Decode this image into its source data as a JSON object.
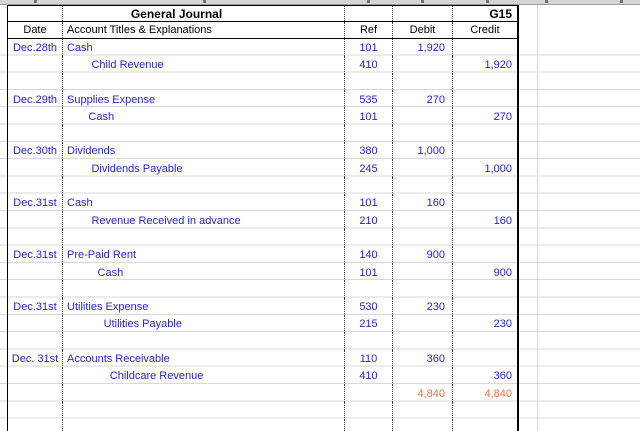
{
  "title": "General Journal",
  "cell_ref": "G15",
  "columns": [
    "Date",
    "Account Titles & Explanations",
    "Ref",
    "Debit",
    "Credit"
  ],
  "colors": {
    "entry_text": "#2525d4",
    "total_text": "#e0744a",
    "border": "#000000",
    "gridline": "#d8d8d8"
  },
  "rows": [
    {
      "date": "Dec.28th",
      "account": "Cash",
      "indent": 0,
      "ref": "101",
      "debit": "1,920",
      "credit": "",
      "total": false
    },
    {
      "date": "",
      "account": "Child Revenue",
      "indent": 8,
      "ref": "410",
      "debit": "",
      "credit": "1,920",
      "total": false
    },
    {
      "date": "",
      "account": "",
      "indent": 0,
      "ref": "",
      "debit": "",
      "credit": "",
      "total": false
    },
    {
      "date": "Dec.29th",
      "account": "Supplies Expense",
      "indent": 0,
      "ref": "535",
      "debit": "270",
      "credit": "",
      "total": false
    },
    {
      "date": "",
      "account": "Cash",
      "indent": 7,
      "ref": "101",
      "debit": "",
      "credit": "270",
      "total": false
    },
    {
      "date": "",
      "account": "",
      "indent": 0,
      "ref": "",
      "debit": "",
      "credit": "",
      "total": false
    },
    {
      "date": "Dec.30th",
      "account": "Dividends",
      "indent": 0,
      "ref": "380",
      "debit": "1,000",
      "credit": "",
      "total": false
    },
    {
      "date": "",
      "account": "Dividends Payable",
      "indent": 8,
      "ref": "245",
      "debit": "",
      "credit": "1,000",
      "total": false
    },
    {
      "date": "",
      "account": "",
      "indent": 0,
      "ref": "",
      "debit": "",
      "credit": "",
      "total": false
    },
    {
      "date": "Dec.31st",
      "account": "Cash",
      "indent": 0,
      "ref": "101",
      "debit": "160",
      "credit": "",
      "total": false
    },
    {
      "date": "",
      "account": "Revenue Received in advance",
      "indent": 8,
      "ref": "210",
      "debit": "",
      "credit": "160",
      "total": false
    },
    {
      "date": "",
      "account": "",
      "indent": 0,
      "ref": "",
      "debit": "",
      "credit": "",
      "total": false
    },
    {
      "date": "Dec.31st",
      "account": "Pre-Paid Rent",
      "indent": 0,
      "ref": "140",
      "debit": "900",
      "credit": "",
      "total": false
    },
    {
      "date": "",
      "account": "Cash",
      "indent": 10,
      "ref": "101",
      "debit": "",
      "credit": "900",
      "total": false
    },
    {
      "date": "",
      "account": "",
      "indent": 0,
      "ref": "",
      "debit": "",
      "credit": "",
      "total": false
    },
    {
      "date": "Dec.31st",
      "account": "Utilities Expense",
      "indent": 0,
      "ref": "530",
      "debit": "230",
      "credit": "",
      "total": false
    },
    {
      "date": "",
      "account": "Utilities Payable",
      "indent": 12,
      "ref": "215",
      "debit": "",
      "credit": "230",
      "total": false
    },
    {
      "date": "",
      "account": "",
      "indent": 0,
      "ref": "",
      "debit": "",
      "credit": "",
      "total": false
    },
    {
      "date": "Dec. 31st",
      "account": "Accounts Receivable",
      "indent": 0,
      "ref": "110",
      "debit": "360",
      "credit": "",
      "total": false
    },
    {
      "date": "",
      "account": "Childcare Revenue",
      "indent": 14,
      "ref": "410",
      "debit": "",
      "credit": "360",
      "total": false
    },
    {
      "date": "",
      "account": "",
      "indent": 0,
      "ref": "",
      "debit": "4,840",
      "credit": "4,840",
      "total": true
    },
    {
      "date": "",
      "account": "",
      "indent": 0,
      "ref": "",
      "debit": "",
      "credit": "",
      "total": false
    },
    {
      "date": "",
      "account": "",
      "indent": 0,
      "ref": "",
      "debit": "",
      "credit": "",
      "total": false
    }
  ]
}
